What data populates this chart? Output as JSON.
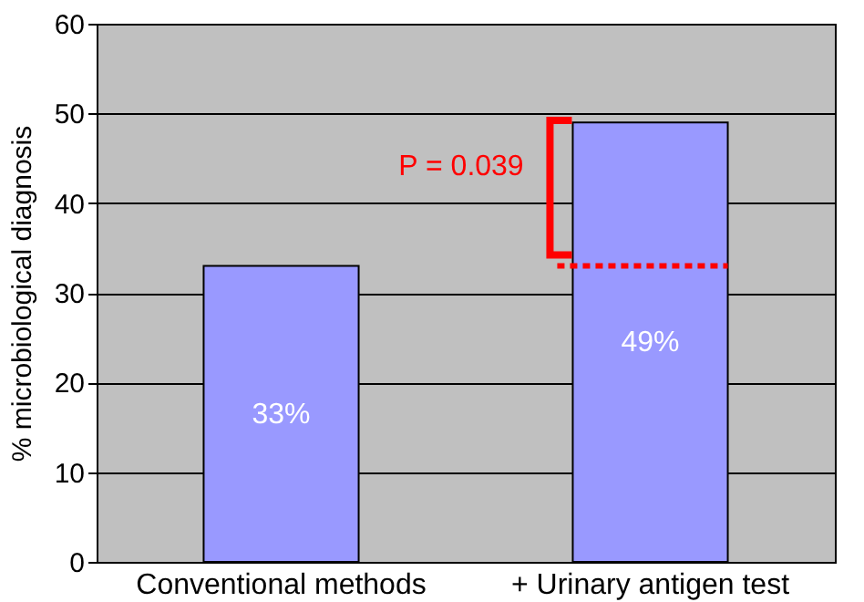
{
  "chart_data": {
    "type": "bar",
    "ylabel": "% microbiological diagnosis",
    "categories": [
      "Conventional methods",
      "+ Urinary antigen test"
    ],
    "values": [
      33,
      49
    ],
    "color": "#9999ff",
    "value_labels": [
      "33%",
      "49%"
    ],
    "ylim": [
      0,
      60
    ],
    "yticks": [
      0,
      10,
      20,
      30,
      40,
      50,
      60
    ],
    "grid": "y",
    "ref_lines": [
      {
        "axis": "y",
        "value": 33,
        "color": "#ff0000",
        "line_style": "dotted"
      }
    ],
    "annotations": [
      "P = 0.039"
    ]
  }
}
